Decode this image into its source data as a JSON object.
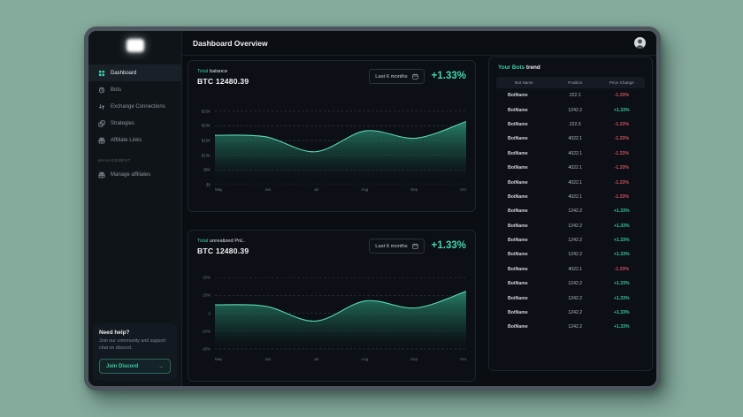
{
  "header": {
    "title": "Dashboard Overview"
  },
  "sidebar": {
    "nav": [
      {
        "label": "Dashboard",
        "icon": "dashboard",
        "active": true
      },
      {
        "label": "Bots",
        "icon": "bots",
        "active": false
      },
      {
        "label": "Exchange Connections",
        "icon": "exchange",
        "active": false
      },
      {
        "label": "Strategies",
        "icon": "strategies",
        "active": false
      },
      {
        "label": "Affiliate Links",
        "icon": "gift",
        "active": false
      }
    ],
    "section_label": "MANAGEMENT",
    "management_nav": [
      {
        "label": "Manage affiliates",
        "icon": "gift",
        "active": false
      }
    ],
    "help": {
      "title": "Need help?",
      "body": "Join our community and support chat on discord.",
      "cta": "Join Discord",
      "cta_arrow": "→"
    }
  },
  "cards": [
    {
      "label_accent": "Total",
      "label_rest": " balance",
      "value": "BTC 12480.39",
      "range": "Last 6 months",
      "change": "+1.33%"
    },
    {
      "label_accent": "Total",
      "label_rest": " unrealized PnL.",
      "value": "BTC 12480.39",
      "range": "Last 6 months",
      "change": "+1.33%"
    }
  ],
  "bots_panel": {
    "title_accent": "Your Bots",
    "title_rest": " trend",
    "columns": [
      "Bot Name",
      "Position",
      "Price Change"
    ],
    "rows": [
      {
        "name": "BotName",
        "position": "222.1",
        "change": "-1.33%",
        "dir": "down"
      },
      {
        "name": "BotName",
        "position": "1242.2",
        "change": "+1.33%",
        "dir": "up"
      },
      {
        "name": "BotName",
        "position": "222.5",
        "change": "-1.33%",
        "dir": "down"
      },
      {
        "name": "BotName",
        "position": "4022.1",
        "change": "-1.33%",
        "dir": "down"
      },
      {
        "name": "BotName",
        "position": "4022.1",
        "change": "-1.33%",
        "dir": "down"
      },
      {
        "name": "BotName",
        "position": "4022.1",
        "change": "-1.33%",
        "dir": "down"
      },
      {
        "name": "BotName",
        "position": "4022.1",
        "change": "-1.33%",
        "dir": "down"
      },
      {
        "name": "BotName",
        "position": "4022.1",
        "change": "-1.33%",
        "dir": "down"
      },
      {
        "name": "BotName",
        "position": "1242.2",
        "change": "+1.33%",
        "dir": "up"
      },
      {
        "name": "BotName",
        "position": "1242.2",
        "change": "+1.33%",
        "dir": "up"
      },
      {
        "name": "BotName",
        "position": "1242.2",
        "change": "+1.33%",
        "dir": "up"
      },
      {
        "name": "BotName",
        "position": "1242.2",
        "change": "+1.33%",
        "dir": "up"
      },
      {
        "name": "BotName",
        "position": "4022.1",
        "change": "-1.33%",
        "dir": "down"
      },
      {
        "name": "BotName",
        "position": "1242.2",
        "change": "+1.33%",
        "dir": "up"
      },
      {
        "name": "BotName",
        "position": "1242.2",
        "change": "+1.33%",
        "dir": "up"
      },
      {
        "name": "BotName",
        "position": "1242.2",
        "change": "+1.33%",
        "dir": "up"
      },
      {
        "name": "BotName",
        "position": "1242.2",
        "change": "+1.33%",
        "dir": "up"
      }
    ]
  },
  "chart_data": [
    {
      "type": "area",
      "title": "Total balance",
      "x": [
        "May",
        "Jun",
        "Jul",
        "Aug",
        "Sep",
        "Oct"
      ],
      "values": [
        16800,
        16300,
        11200,
        18300,
        15800,
        21500
      ],
      "ylim": [
        0,
        31250
      ],
      "yticks": [
        {
          "label": "$25K",
          "value": 25000
        },
        {
          "label": "$20K",
          "value": 20000
        },
        {
          "label": "$15K",
          "value": 15000
        },
        {
          "label": "$10K",
          "value": 10000
        },
        {
          "label": "$5K",
          "value": 5000
        },
        {
          "label": "$0",
          "value": 0
        }
      ],
      "grid": "dashed",
      "legend": "none"
    },
    {
      "type": "area",
      "title": "Total unrealized PnL (%)",
      "x": [
        "May",
        "Jun",
        "Jul",
        "Aug",
        "Sep",
        "Oct"
      ],
      "values": [
        4.7,
        4.0,
        -4.4,
        6.9,
        3.0,
        12.3
      ],
      "ylim": [
        -23,
        28.5
      ],
      "yticks": [
        {
          "label": "20%",
          "value": 20
        },
        {
          "label": "10%",
          "value": 10
        },
        {
          "label": "0",
          "value": 0
        },
        {
          "label": "-10%",
          "value": -10
        },
        {
          "label": "-20%",
          "value": -20
        }
      ],
      "grid": "dashed",
      "legend": "none"
    }
  ],
  "colors": {
    "accent": "#3bd0a4",
    "chart_line": "#5ad9b4",
    "chart_fill_top": "#2f9c7e",
    "positive": "#35c79c",
    "negative": "#d15064",
    "grid_line": "#454c55",
    "desktop_bg": "#85ab9d"
  }
}
